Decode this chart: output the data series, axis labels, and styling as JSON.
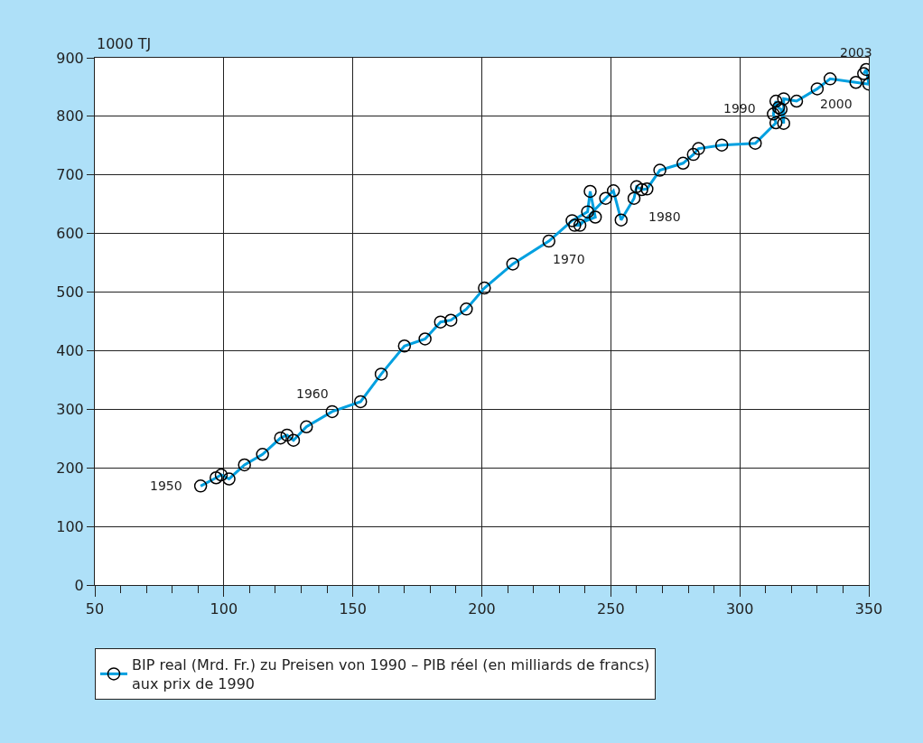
{
  "chart_data": {
    "type": "line",
    "ylabel": "1000 TJ",
    "x": [
      91,
      97,
      99,
      102,
      108,
      115,
      122,
      124.5,
      127,
      132,
      142,
      153,
      161,
      170,
      178,
      184,
      188,
      194,
      201,
      212,
      226,
      235,
      241,
      242,
      244,
      236,
      238,
      248,
      251,
      254,
      259,
      260,
      262,
      264,
      269,
      278,
      282,
      284,
      293,
      306,
      314,
      313,
      314,
      315,
      316,
      317,
      317,
      322,
      330,
      335,
      345,
      350,
      349,
      348
    ],
    "series": [
      {
        "name": "BIP real (Mrd. Fr.) zu Preisen von 1990 – PIB réel (en milliards de francs)\naux prix de 1990",
        "color": "#00a0e0",
        "values": [
          169,
          183,
          188,
          181,
          205,
          223,
          251,
          256,
          247,
          270,
          296,
          313,
          360,
          408,
          420,
          449,
          452,
          471,
          507,
          548,
          587,
          622,
          637,
          672,
          628,
          614,
          614,
          660,
          673,
          623,
          660,
          680,
          675,
          676,
          708,
          720,
          735,
          745,
          751,
          754,
          789,
          804,
          826,
          815,
          812,
          788,
          830,
          826,
          847,
          864,
          858,
          855,
          880,
          873
        ]
      }
    ],
    "marker": "circle",
    "line_style": "solid",
    "xlim": [
      50,
      350
    ],
    "ylim": [
      0,
      900
    ],
    "xticks": [
      50,
      {
        "value": 60,
        "label": null
      },
      {
        "value": 70,
        "label": null
      },
      {
        "value": 80,
        "label": null
      },
      {
        "value": 90,
        "label": null
      },
      100,
      {
        "value": 110,
        "label": null
      },
      {
        "value": 120,
        "label": null
      },
      {
        "value": 130,
        "label": null
      },
      {
        "value": 140,
        "label": null
      },
      150,
      {
        "value": 160,
        "label": null
      },
      {
        "value": 170,
        "label": null
      },
      {
        "value": 180,
        "label": null
      },
      {
        "value": 190,
        "label": null
      },
      200,
      {
        "value": 210,
        "label": null
      },
      {
        "value": 220,
        "label": null
      },
      {
        "value": 230,
        "label": null
      },
      {
        "value": 240,
        "label": null
      },
      250,
      {
        "value": 260,
        "label": null
      },
      {
        "value": 270,
        "label": null
      },
      {
        "value": 280,
        "label": null
      },
      {
        "value": 290,
        "label": null
      },
      300,
      {
        "value": 310,
        "label": null
      },
      {
        "value": 320,
        "label": null
      },
      {
        "value": 330,
        "label": null
      },
      {
        "value": 340,
        "label": null
      },
      350
    ],
    "yticks": [
      0,
      100,
      200,
      300,
      400,
      500,
      600,
      700,
      800,
      900
    ],
    "grid": true,
    "legend": "bottom",
    "annotations": [
      {
        "text": "1950",
        "x": 91,
        "y": 169
      },
      {
        "text": "1960",
        "x": 142,
        "y": 296
      },
      {
        "text": "1970",
        "x": 226,
        "y": 587
      },
      {
        "text": "1980",
        "x": 259,
        "y": 660
      },
      {
        "text": "1990",
        "x": 314,
        "y": 789
      },
      {
        "text": "2000",
        "x": 345,
        "y": 858
      },
      {
        "text": "2003",
        "x": 348,
        "y": 873
      }
    ]
  }
}
